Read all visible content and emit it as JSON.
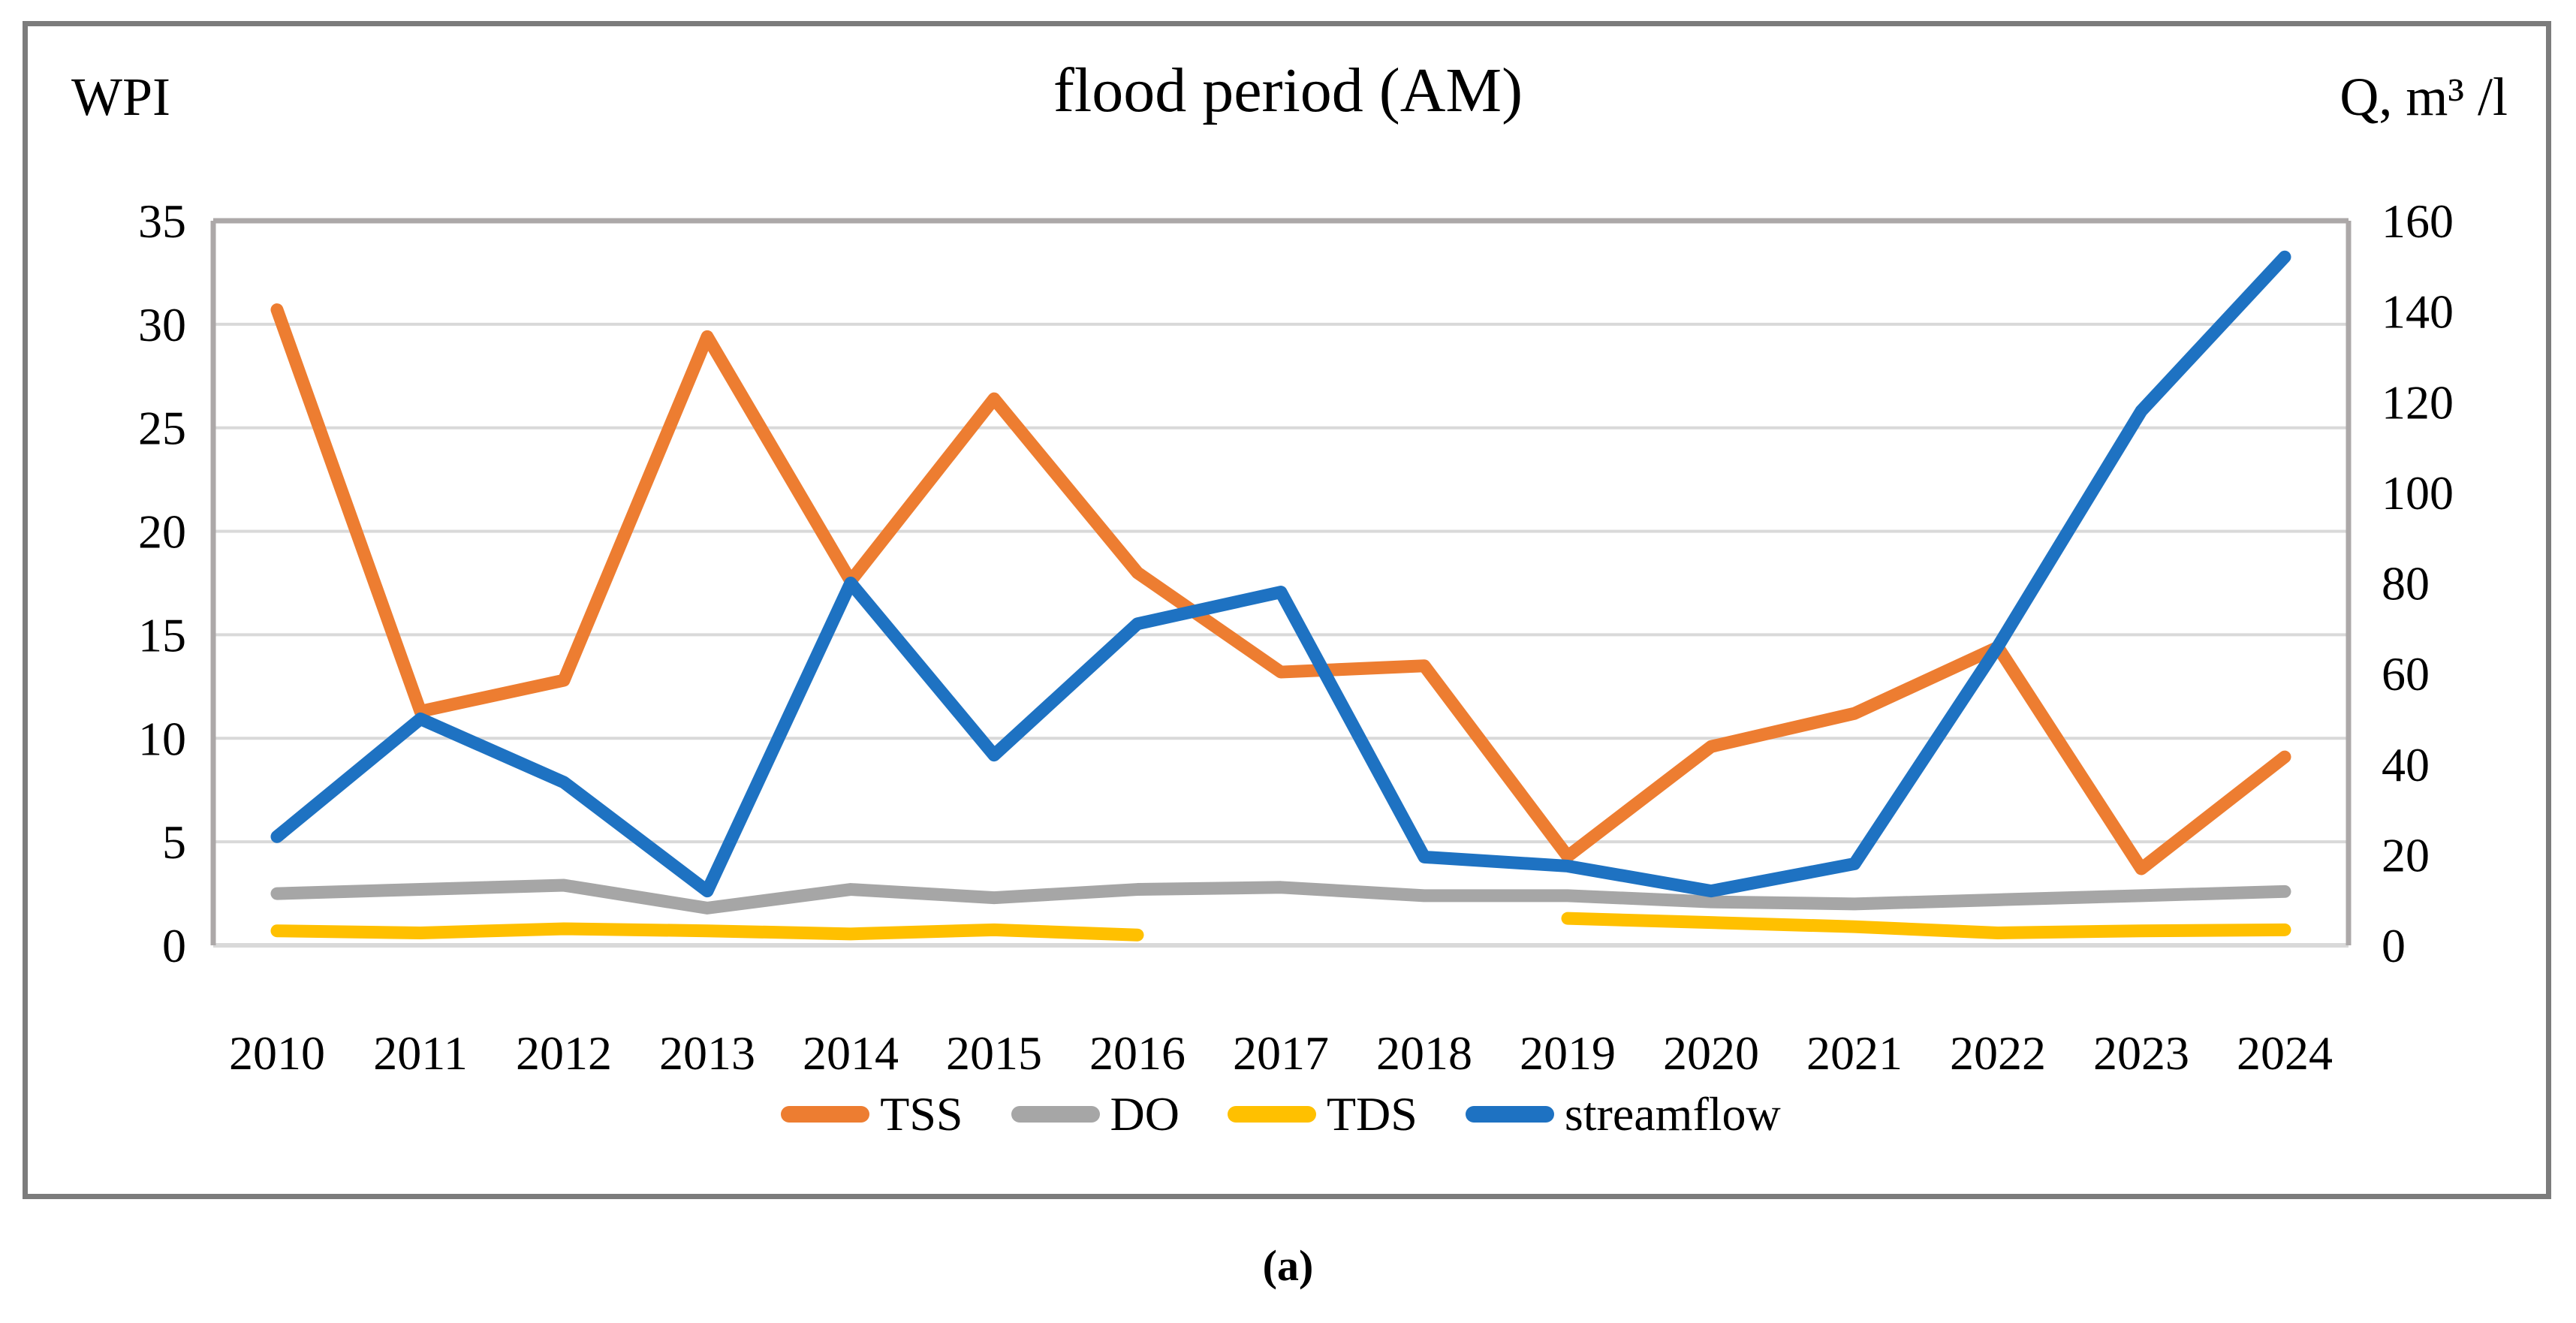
{
  "figure": {
    "title": "flood period (AM)",
    "left_axis_label": "WPI",
    "right_axis_label": "Q, m³ /l",
    "caption": "(a)"
  },
  "chart_data": {
    "type": "line",
    "title": "flood period (AM)",
    "categories": [
      "2010",
      "2011",
      "2012",
      "2013",
      "2014",
      "2015",
      "2016",
      "2017",
      "2018",
      "2019",
      "2020",
      "2021",
      "2022",
      "2023",
      "2024"
    ],
    "xlabel": "",
    "y_left": {
      "label": "WPI",
      "min": 0,
      "max": 35,
      "tick_step": 5,
      "ticks": [
        "35",
        "30",
        "25",
        "20",
        "15",
        "10",
        "5",
        "0"
      ]
    },
    "y_right": {
      "label": "Q, m³ /l",
      "min": 0,
      "max": 160,
      "tick_step": 20,
      "ticks": [
        "160",
        "140",
        "120",
        "100",
        "80",
        "60",
        "40",
        "20",
        "0"
      ]
    },
    "grid": "horizontal",
    "legend_position": "bottom",
    "series": [
      {
        "name": "TSS",
        "axis": "left",
        "color": "#ED7D31",
        "values": [
          30.7,
          11.3,
          12.8,
          29.4,
          17.6,
          26.4,
          18.0,
          13.2,
          13.5,
          4.3,
          9.6,
          11.2,
          14.4,
          3.7,
          9.1
        ]
      },
      {
        "name": "DO",
        "axis": "left",
        "color": "#A6A6A6",
        "values": [
          2.5,
          2.7,
          2.9,
          1.8,
          2.7,
          2.3,
          2.7,
          2.8,
          2.4,
          2.4,
          2.1,
          2.0,
          2.2,
          2.4,
          2.6
        ]
      },
      {
        "name": "TDS",
        "axis": "left",
        "color": "#FFC000",
        "values": [
          0.7,
          0.6,
          0.8,
          0.7,
          0.55,
          0.75,
          0.5,
          null,
          null,
          1.3,
          1.1,
          0.9,
          0.6,
          0.7,
          0.75
        ]
      },
      {
        "name": "streamflow",
        "axis": "right",
        "color": "#1E72C2",
        "values": [
          24,
          50,
          36,
          12,
          80,
          42,
          71,
          78,
          19.5,
          17.5,
          12,
          18,
          66,
          118,
          152
        ]
      }
    ],
    "style": {
      "gridline_color": "#D9D9D9",
      "plot_border_color": "#ACA8A8",
      "line_width": 17
    }
  }
}
